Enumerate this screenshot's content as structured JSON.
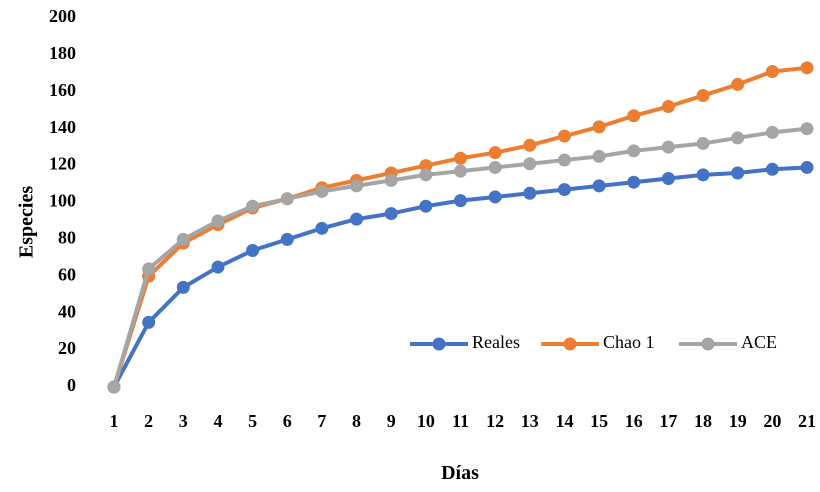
{
  "chart_data": {
    "type": "line",
    "title": "",
    "xlabel": "Días",
    "ylabel": "Especies",
    "categories": [
      "1",
      "2",
      "3",
      "4",
      "5",
      "6",
      "7",
      "8",
      "9",
      "10",
      "11",
      "12",
      "13",
      "14",
      "15",
      "16",
      "17",
      "18",
      "19",
      "20",
      "21"
    ],
    "ylim": [
      0,
      200
    ],
    "yticks": [
      "0",
      "20",
      "40",
      "60",
      "80",
      "100",
      "120",
      "140",
      "160",
      "180",
      "200"
    ],
    "grid": false,
    "legend_position": "bottom-right",
    "series": [
      {
        "name": "Reales",
        "color": "#4472C4",
        "values": [
          0,
          35,
          54,
          65,
          74,
          80,
          86,
          91,
          94,
          98,
          101,
          103,
          105,
          107,
          109,
          111,
          113,
          115,
          116,
          118,
          119
        ]
      },
      {
        "name": "Chao 1",
        "color": "#ED7D31",
        "values": [
          0,
          60,
          78,
          88,
          97,
          102,
          108,
          112,
          116,
          120,
          124,
          127,
          131,
          136,
          141,
          147,
          152,
          158,
          164,
          171,
          173
        ]
      },
      {
        "name": "ACE",
        "color": "#A5A5A5",
        "values": [
          0,
          64,
          80,
          90,
          98,
          102,
          106,
          109,
          112,
          115,
          117,
          119,
          121,
          123,
          125,
          128,
          130,
          132,
          135,
          138,
          140
        ]
      }
    ]
  }
}
